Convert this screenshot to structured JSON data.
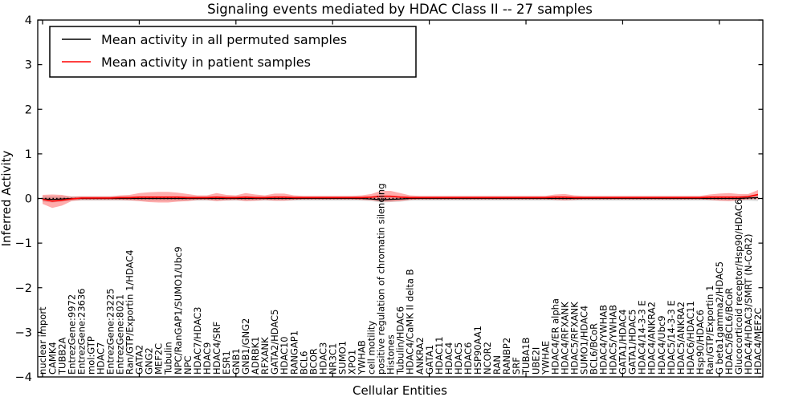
{
  "figure": {
    "background": "#ffffff",
    "axis_color": "#000000",
    "zero_line_style": "dotted"
  },
  "chart_data": {
    "type": "line",
    "title": "Signaling events mediated by HDAC Class II -- 27 samples",
    "xlabel": "Cellular Entities",
    "ylabel": "Inferred Activity",
    "ylim": [
      -4,
      4
    ],
    "yticks": [
      -4,
      -3,
      -2,
      -1,
      0,
      1,
      2,
      3,
      4
    ],
    "x_major_tick_every": 10,
    "grid": false,
    "legend_position": "upper left",
    "categories": [
      "nuclear import",
      "CAMK4",
      "TUBB2A",
      "EntrezGene:9972",
      "EntrezGene:23636",
      "mol:GTP",
      "HDAC7",
      "EntrezGene:23225",
      "EntrezGene:8021",
      "Ran/GTP/Exportin 1/HDAC4",
      "GATA2",
      "GNG2",
      "MEF2C",
      "Tubulin",
      "NPC/RanGAP1/SUMO1/Ubc9",
      "NPC",
      "HDAC7/HDAC3",
      "HDAC9",
      "HDAC4/SRF",
      "ESR1",
      "GNB1",
      "GNB1/GNG2",
      "ADRBK1",
      "RFXANK",
      "GATA2/HDAC5",
      "HDAC10",
      "RANGAP1",
      "BCL6",
      "BCOR",
      "HDAC3",
      "NR3C1",
      "SUMO1",
      "XPO1",
      "YWHAB",
      "cell motility",
      "positive regulation of chromatin silencing",
      "Histones",
      "Tubulin/HDAC6",
      "HDAC4/CaMK II delta B",
      "ANKRA2",
      "GATA1",
      "HDAC11",
      "HDAC4",
      "HDAC5",
      "HDAC6",
      "HSP90AA1",
      "NCOR2",
      "RAN",
      "RANBP2",
      "SRF",
      "TUBA1B",
      "UBE2I",
      "YWHAE",
      "HDAC4/ER alpha",
      "HDAC4/RFXANK",
      "HDAC5/RFXANK",
      "SUMO1/HDAC4",
      "BCL6/BCoR",
      "HDAC4/YWHAB",
      "HDAC5/YWHAB",
      "GATA1/HDAC4",
      "GATA1/HDAC5",
      "HDAC4/14-3-3 E",
      "HDAC4/ANKRA2",
      "HDAC4/Ubc9",
      "HDAC5/14-3-3 E",
      "HDAC5/ANKRA2",
      "HDAC6/HDAC11",
      "Hsp90/HDAC6",
      "Ran/GTP/Exportin 1",
      "G beta1gamma2/HDAC5",
      "HDAC5/BCL6/BCoR",
      "Glucocorticoid receptor/Hsp90/HDAC6",
      "HDAC4/HDAC3/SMRT (N-CoR2)",
      "HDAC4/MEF2C"
    ],
    "series": [
      {
        "name": "Mean activity in all permuted samples",
        "color": "#000000",
        "band_color": "#808080",
        "band_opacity": 0.28,
        "values": [
          -0.01,
          -0.02,
          -0.01,
          0,
          0,
          0,
          0,
          0,
          0,
          0,
          0,
          0,
          0,
          0,
          0,
          0,
          0,
          0,
          0,
          0,
          0,
          0,
          0,
          0,
          0,
          0,
          0,
          0,
          0,
          0,
          0,
          0,
          0,
          0,
          -0.01,
          -0.03,
          -0.02,
          -0.01,
          0,
          0,
          0,
          0,
          0,
          0,
          0,
          0,
          0,
          0,
          0,
          0,
          0,
          0,
          0,
          0,
          0,
          0,
          0,
          0,
          0,
          0,
          0,
          0,
          0,
          0,
          0,
          0,
          0,
          0,
          0,
          0,
          0,
          0,
          0,
          0.01,
          0.02
        ],
        "band_half_width": [
          0.06,
          0.07,
          0.06,
          0.05,
          0.05,
          0.05,
          0.05,
          0.05,
          0.05,
          0.05,
          0.05,
          0.05,
          0.05,
          0.05,
          0.05,
          0.05,
          0.05,
          0.05,
          0.05,
          0.05,
          0.05,
          0.05,
          0.05,
          0.05,
          0.05,
          0.05,
          0.05,
          0.05,
          0.05,
          0.05,
          0.05,
          0.05,
          0.05,
          0.05,
          0.05,
          0.06,
          0.06,
          0.06,
          0.05,
          0.05,
          0.05,
          0.05,
          0.05,
          0.05,
          0.05,
          0.05,
          0.05,
          0.05,
          0.05,
          0.05,
          0.05,
          0.05,
          0.05,
          0.05,
          0.05,
          0.05,
          0.05,
          0.05,
          0.05,
          0.05,
          0.05,
          0.05,
          0.05,
          0.05,
          0.05,
          0.05,
          0.05,
          0.05,
          0.05,
          0.05,
          0.05,
          0.05,
          0.05,
          0.06,
          0.08
        ]
      },
      {
        "name": "Mean activity in patient samples",
        "color": "#ff0000",
        "band_color": "#ff0000",
        "band_opacity": 0.32,
        "values": [
          -0.02,
          -0.06,
          -0.04,
          -0.01,
          0.01,
          0.01,
          0.01,
          0.01,
          0.02,
          0.02,
          0.03,
          0.03,
          0.03,
          0.03,
          0.03,
          0.02,
          0.02,
          0.02,
          0.03,
          0.02,
          0.02,
          0.03,
          0.02,
          0.02,
          0.03,
          0.03,
          0.02,
          0.02,
          0.02,
          0.02,
          0.02,
          0.02,
          0.02,
          0.02,
          0.03,
          0.05,
          0.05,
          0.03,
          0.02,
          0.02,
          0.02,
          0.02,
          0.02,
          0.02,
          0.02,
          0.02,
          0.02,
          0.02,
          0.02,
          0.02,
          0.02,
          0.02,
          0.02,
          0.03,
          0.03,
          0.02,
          0.02,
          0.02,
          0.02,
          0.02,
          0.02,
          0.02,
          0.02,
          0.02,
          0.02,
          0.02,
          0.02,
          0.02,
          0.02,
          0.03,
          0.03,
          0.03,
          0.03,
          0.04,
          0.09
        ],
        "band_half_width": [
          0.1,
          0.15,
          0.12,
          0.05,
          0.04,
          0.04,
          0.04,
          0.04,
          0.05,
          0.06,
          0.09,
          0.11,
          0.12,
          0.12,
          0.1,
          0.08,
          0.05,
          0.05,
          0.09,
          0.06,
          0.05,
          0.09,
          0.07,
          0.05,
          0.08,
          0.08,
          0.05,
          0.04,
          0.04,
          0.04,
          0.04,
          0.04,
          0.04,
          0.05,
          0.07,
          0.12,
          0.12,
          0.09,
          0.05,
          0.04,
          0.04,
          0.04,
          0.04,
          0.04,
          0.04,
          0.04,
          0.04,
          0.04,
          0.04,
          0.04,
          0.04,
          0.04,
          0.04,
          0.06,
          0.07,
          0.05,
          0.04,
          0.04,
          0.04,
          0.04,
          0.04,
          0.04,
          0.04,
          0.04,
          0.04,
          0.04,
          0.04,
          0.04,
          0.04,
          0.06,
          0.08,
          0.09,
          0.07,
          0.06,
          0.1
        ]
      }
    ]
  }
}
